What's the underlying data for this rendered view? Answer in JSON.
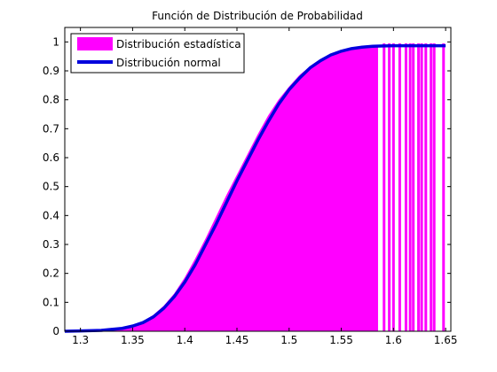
{
  "colors": {
    "histogram": "#ff00ff",
    "normal_line": "#0000dd",
    "axis": "#000000",
    "background": "#ffffff"
  },
  "chart_data": {
    "type": "area",
    "title": "Función de Distribución de Probabilidad",
    "xlabel": "",
    "ylabel": "",
    "xlim": [
      1.285,
      1.655
    ],
    "ylim": [
      0,
      1.05
    ],
    "x_ticks": [
      1.3,
      1.35,
      1.4,
      1.45,
      1.5,
      1.55,
      1.6,
      1.65
    ],
    "x_tick_labels": [
      "1.3",
      "1.35",
      "1.4",
      "1.45",
      "1.5",
      "1.55",
      "1.6",
      "1.65"
    ],
    "y_ticks": [
      0,
      0.1,
      0.2,
      0.3,
      0.4,
      0.5,
      0.6,
      0.7,
      0.8,
      0.9,
      1
    ],
    "y_tick_labels": [
      "0",
      "0.1",
      "0.2",
      "0.3",
      "0.4",
      "0.5",
      "0.6",
      "0.7",
      "0.8",
      "0.9",
      "1"
    ],
    "grid": false,
    "legend_position": "top-left",
    "series": [
      {
        "name": "Distribución estadística",
        "kind": "histogram-cdf",
        "x": [
          1.285,
          1.3,
          1.32,
          1.34,
          1.35,
          1.36,
          1.37,
          1.38,
          1.39,
          1.4,
          1.41,
          1.42,
          1.43,
          1.44,
          1.45,
          1.46,
          1.47,
          1.48,
          1.49,
          1.5,
          1.51,
          1.52,
          1.53,
          1.54,
          1.55,
          1.56,
          1.57,
          1.58,
          1.585
        ],
        "values": [
          0,
          0.001,
          0.004,
          0.012,
          0.02,
          0.034,
          0.056,
          0.088,
          0.13,
          0.185,
          0.25,
          0.32,
          0.395,
          0.47,
          0.54,
          0.61,
          0.68,
          0.745,
          0.8,
          0.845,
          0.885,
          0.915,
          0.94,
          0.958,
          0.97,
          0.978,
          0.983,
          0.986,
          0.987
        ],
        "spikes_x": [
          1.591,
          1.596,
          1.6,
          1.606,
          1.612,
          1.616,
          1.619,
          1.624,
          1.627,
          1.631,
          1.636,
          1.639,
          1.648
        ],
        "spike_value": 0.995
      },
      {
        "name": "Distribución normal",
        "kind": "line",
        "x": [
          1.285,
          1.3,
          1.32,
          1.34,
          1.35,
          1.36,
          1.37,
          1.38,
          1.39,
          1.4,
          1.41,
          1.42,
          1.43,
          1.44,
          1.45,
          1.46,
          1.47,
          1.48,
          1.49,
          1.5,
          1.51,
          1.52,
          1.53,
          1.54,
          1.55,
          1.56,
          1.57,
          1.58,
          1.59,
          1.6,
          1.62,
          1.65
        ],
        "values": [
          0,
          0.001,
          0.003,
          0.01,
          0.018,
          0.03,
          0.05,
          0.08,
          0.12,
          0.17,
          0.23,
          0.3,
          0.37,
          0.445,
          0.52,
          0.59,
          0.66,
          0.725,
          0.785,
          0.835,
          0.875,
          0.91,
          0.935,
          0.955,
          0.968,
          0.977,
          0.982,
          0.985,
          0.986,
          0.987,
          0.987,
          0.987
        ]
      }
    ]
  }
}
